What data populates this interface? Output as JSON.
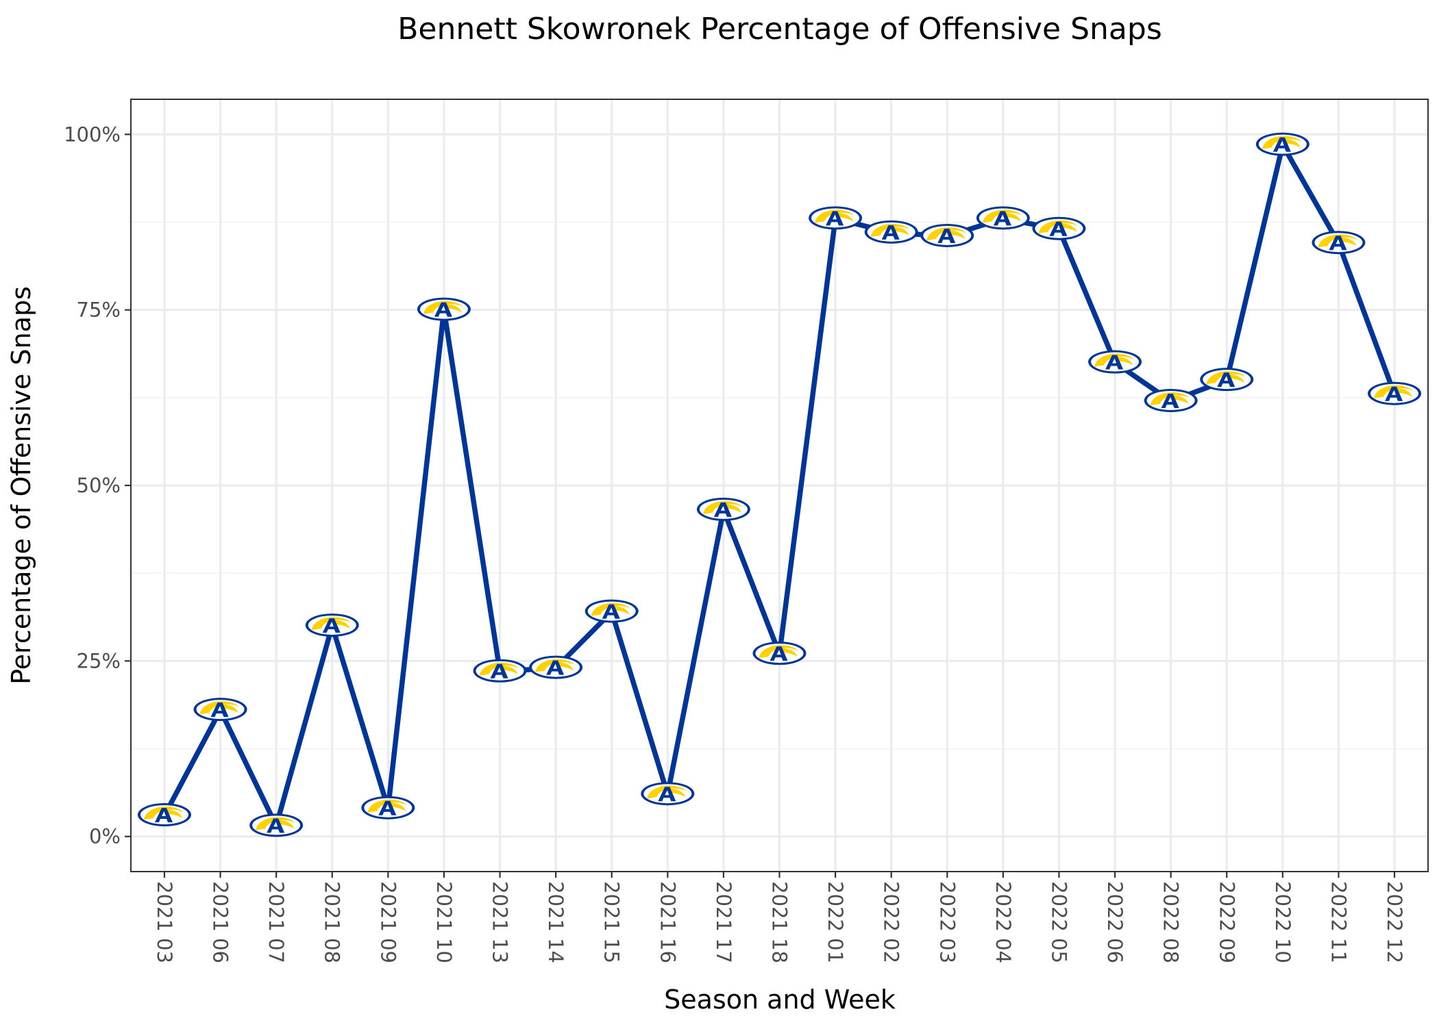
{
  "chart_data": {
    "type": "line",
    "title": "Bennett Skowronek Percentage of Offensive Snaps",
    "xlabel": "Season and Week",
    "ylabel": "Percentage of Offensive Snaps",
    "categories": [
      "2021 03",
      "2021 06",
      "2021 07",
      "2021 08",
      "2021 09",
      "2021 10",
      "2021 13",
      "2021 14",
      "2021 15",
      "2021 16",
      "2021 17",
      "2021 18",
      "2022 01",
      "2022 02",
      "2022 03",
      "2022 04",
      "2022 05",
      "2022 06",
      "2022 08",
      "2022 09",
      "2022 10",
      "2022 11",
      "2022 12"
    ],
    "values": [
      3,
      18,
      1.5,
      30,
      4,
      75,
      23.5,
      24,
      32,
      6,
      46.5,
      26,
      88,
      86,
      85.5,
      88,
      86.5,
      67.5,
      62,
      65,
      98.5,
      84.5,
      63
    ],
    "ylim": [
      -5,
      105
    ],
    "y_ticks": [
      0,
      25,
      50,
      75,
      100
    ],
    "y_tick_labels": [
      "0%",
      "25%",
      "50%",
      "75%",
      "100%"
    ],
    "x_tick_rotation": "vertical",
    "grid": true,
    "marker": "rams-logo",
    "colors": {
      "line": "#003594",
      "logo_blue": "#003594",
      "logo_gold": "#FFD100",
      "logo_white": "#ffffff"
    }
  }
}
